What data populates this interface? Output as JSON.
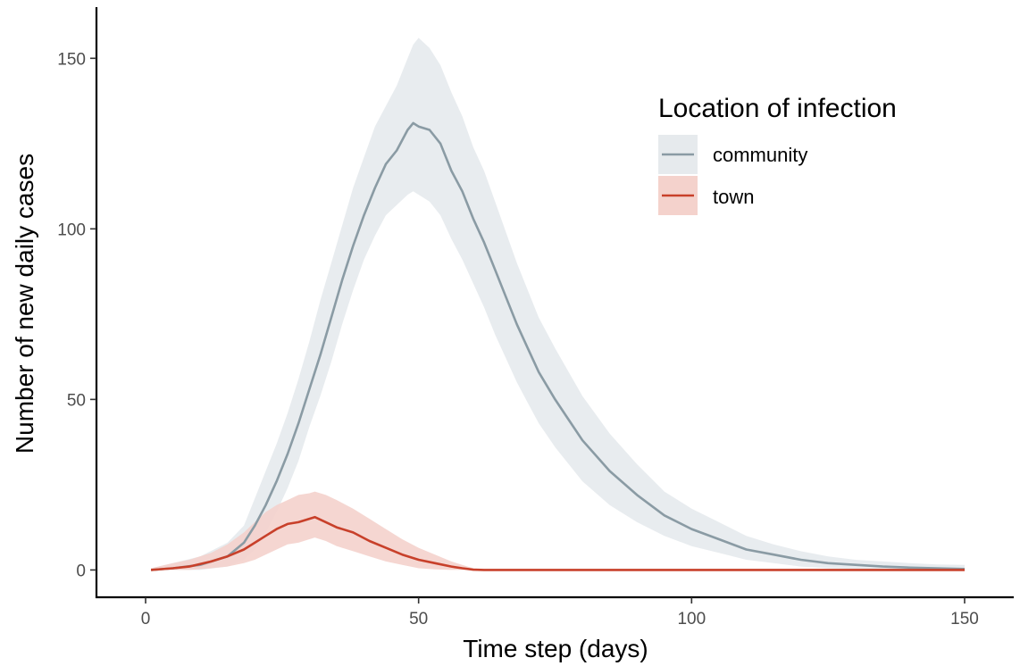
{
  "chart_data": {
    "type": "line",
    "xlabel": "Time step (days)",
    "ylabel": "Number of new daily cases",
    "xlim": [
      -9,
      159
    ],
    "ylim": [
      -8,
      165
    ],
    "x_ticks": [
      0,
      50,
      100,
      150
    ],
    "x_tick_labels": [
      "0",
      "50",
      "100",
      "150"
    ],
    "y_ticks": [
      0,
      50,
      100,
      150
    ],
    "y_tick_labels": [
      "0",
      "50",
      "100",
      "150"
    ],
    "grid": false,
    "legend": {
      "title": "Location of infection",
      "placement": "top-right",
      "entries": [
        "community",
        "town"
      ]
    },
    "series": [
      {
        "name": "community",
        "line_color": "#8a9ba4",
        "band_color": "#e6eaed",
        "x": [
          1,
          5,
          10,
          15,
          18,
          20,
          22,
          24,
          26,
          28,
          30,
          32,
          34,
          36,
          38,
          40,
          42,
          44,
          46,
          48,
          49,
          50,
          52,
          54,
          56,
          58,
          60,
          62,
          64,
          66,
          68,
          70,
          72,
          75,
          80,
          85,
          90,
          95,
          100,
          105,
          110,
          115,
          120,
          125,
          130,
          135,
          140,
          145,
          150
        ],
        "values": [
          0,
          0.5,
          1.5,
          4,
          8,
          13,
          19,
          26,
          34,
          43,
          53,
          63,
          74,
          85,
          95,
          104,
          112,
          119,
          123,
          129,
          131,
          130,
          129,
          125,
          117,
          111,
          103,
          96,
          88,
          80,
          72,
          65,
          58,
          50,
          38,
          29,
          22,
          16,
          12,
          9,
          6,
          4.5,
          3,
          2,
          1.5,
          1,
          0.7,
          0.5,
          0.3
        ],
        "lower": [
          0,
          0,
          0,
          1,
          3,
          6,
          11,
          17,
          24,
          32,
          42,
          51,
          61,
          72,
          82,
          91,
          98,
          104,
          107,
          110,
          111,
          110,
          108,
          104,
          97,
          91,
          84,
          77,
          69,
          62,
          55,
          49,
          43,
          36,
          26,
          19,
          14,
          10,
          7,
          5,
          3,
          2,
          1,
          0.5,
          0.3,
          0.2,
          0.1,
          0,
          0
        ],
        "upper": [
          0.5,
          2,
          4,
          8,
          13,
          21,
          29,
          37,
          46,
          56,
          67,
          79,
          90,
          101,
          112,
          121,
          130,
          136,
          142,
          150,
          154,
          156,
          153,
          148,
          140,
          133,
          124,
          117,
          108,
          99,
          90,
          82,
          74,
          65,
          51,
          40,
          31,
          23,
          18,
          14,
          10,
          7.5,
          5.5,
          4,
          3,
          2.5,
          2,
          1.6,
          1.5
        ]
      },
      {
        "name": "town",
        "line_color": "#c8402a",
        "band_color": "#f4d2cc",
        "x": [
          1,
          5,
          8,
          12,
          15,
          18,
          20,
          22,
          24,
          26,
          28,
          30,
          31,
          33,
          35,
          38,
          41,
          44,
          47,
          50,
          53,
          56,
          58,
          60,
          62,
          70,
          80,
          100,
          120,
          150
        ],
        "values": [
          0,
          0.5,
          1,
          2.5,
          4,
          6,
          8,
          10,
          12,
          13.5,
          14,
          15,
          15.5,
          14,
          12.5,
          11,
          8.5,
          6.5,
          4.5,
          3,
          2,
          1,
          0.5,
          0.1,
          0,
          0,
          0,
          0,
          0,
          0
        ],
        "lower": [
          0,
          0,
          0,
          0.5,
          1,
          2,
          3,
          4.5,
          6,
          7.5,
          8,
          9,
          9.5,
          8.5,
          7,
          5.5,
          4,
          2.5,
          1.5,
          0.5,
          0.2,
          0,
          0,
          0,
          0,
          0,
          0,
          0,
          0,
          0
        ],
        "upper": [
          0.5,
          2,
          3,
          5,
          7.5,
          11,
          14,
          17,
          19,
          20.5,
          22,
          22.5,
          23,
          22,
          20.5,
          18,
          15,
          12,
          9,
          6.5,
          4.5,
          2.5,
          1.5,
          0.5,
          0.2,
          0,
          0,
          0,
          0,
          0
        ]
      }
    ]
  }
}
